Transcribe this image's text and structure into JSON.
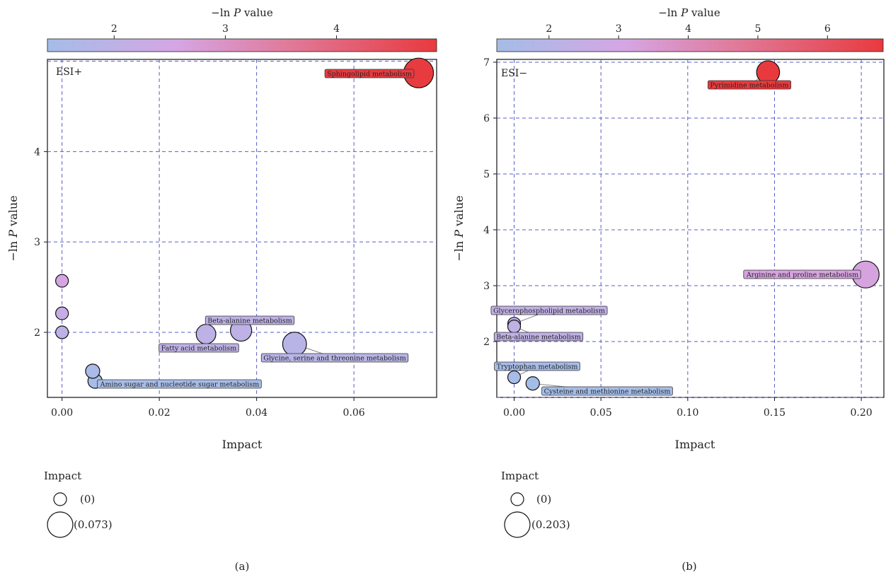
{
  "panels": [
    {
      "caption": "(a)",
      "colorbar": {
        "title_prefix": "−ln ",
        "title_var": "P",
        "title_suffix": " value",
        "min": 1.4,
        "max": 4.9,
        "ticks": [
          2,
          3,
          4
        ]
      },
      "legend": {
        "title": "Impact",
        "small_label": "(0)",
        "large_label": "(0.073)"
      },
      "chart_data": {
        "type": "scatter",
        "annotation": "ESI+",
        "xlabel": "Impact",
        "ylabel_prefix": "−ln ",
        "ylabel_var": "P",
        "ylabel_suffix": " value",
        "xlim": [
          -0.003,
          0.077
        ],
        "ylim": [
          1.28,
          5.02
        ],
        "xticks": [
          {
            "v": 0.0,
            "label": "0.00"
          },
          {
            "v": 0.02,
            "label": "0.02"
          },
          {
            "v": 0.04,
            "label": "0.04"
          },
          {
            "v": 0.06,
            "label": "0.06"
          }
        ],
        "yticks": [
          {
            "v": 2,
            "label": "2"
          },
          {
            "v": 3,
            "label": "3"
          },
          {
            "v": 4,
            "label": "4"
          }
        ],
        "xgrid": [
          0.0,
          0.02,
          0.04,
          0.06
        ],
        "ygrid": [
          2,
          3,
          4,
          5
        ],
        "points": [
          {
            "x": 0.0733,
            "y": 4.87,
            "label": "Sphingolipid metabolism"
          },
          {
            "x": 0.0,
            "y": 2.57,
            "label": ""
          },
          {
            "x": 0.0,
            "y": 2.21,
            "label": ""
          },
          {
            "x": 0.0,
            "y": 2.0,
            "label": ""
          },
          {
            "x": 0.0368,
            "y": 2.02,
            "label": "Beta-alanine metabolism"
          },
          {
            "x": 0.0296,
            "y": 1.98,
            "label": "Fatty acid metabolism"
          },
          {
            "x": 0.0478,
            "y": 1.87,
            "label": "Glycine, serine and threonine metabolism"
          },
          {
            "x": 0.0063,
            "y": 1.57,
            "label": ""
          },
          {
            "x": 0.0068,
            "y": 1.46,
            "label": "Amino sugar and nucleotide sugar metabolism"
          }
        ]
      }
    },
    {
      "caption": "(b)",
      "colorbar": {
        "title_prefix": "−ln ",
        "title_var": "P",
        "title_suffix": " value",
        "min": 1.25,
        "max": 6.8,
        "ticks": [
          2,
          3,
          4,
          5,
          6
        ]
      },
      "legend": {
        "title": "Impact",
        "small_label": "(0)",
        "large_label": "(0.203)"
      },
      "chart_data": {
        "type": "scatter",
        "annotation": "ESI−",
        "xlabel": "Impact",
        "ylabel_prefix": "−ln ",
        "ylabel_var": "P",
        "ylabel_suffix": " value",
        "xlim": [
          -0.01,
          0.213
        ],
        "ylim": [
          1.0,
          7.05
        ],
        "xticks": [
          {
            "v": 0.0,
            "label": "0.00"
          },
          {
            "v": 0.05,
            "label": "0.05"
          },
          {
            "v": 0.1,
            "label": "0.10"
          },
          {
            "v": 0.15,
            "label": "0.15"
          },
          {
            "v": 0.2,
            "label": "0.20"
          }
        ],
        "yticks": [
          {
            "v": 2,
            "label": "2"
          },
          {
            "v": 3,
            "label": "3"
          },
          {
            "v": 4,
            "label": "4"
          },
          {
            "v": 5,
            "label": "5"
          },
          {
            "v": 6,
            "label": "6"
          },
          {
            "v": 7,
            "label": "7"
          }
        ],
        "xgrid": [
          0.0,
          0.05,
          0.1,
          0.15,
          0.2
        ],
        "ygrid": [
          1,
          2,
          3,
          4,
          5,
          6,
          7
        ],
        "points": [
          {
            "x": 0.1463,
            "y": 6.82,
            "label": "Pyrimidine metabolism"
          },
          {
            "x": 0.2025,
            "y": 3.2,
            "label": "Arginine and proline metabolism"
          },
          {
            "x": 0.0,
            "y": 2.32,
            "label": "Glycerophospholipid metabolism"
          },
          {
            "x": 0.0,
            "y": 2.27,
            "label": "Beta-alanine metabolism"
          },
          {
            "x": 0.0,
            "y": 1.36,
            "label": "Tryptophan metabolism"
          },
          {
            "x": 0.0107,
            "y": 1.25,
            "label": "Cysteine and methionine metabolism"
          }
        ]
      }
    }
  ]
}
